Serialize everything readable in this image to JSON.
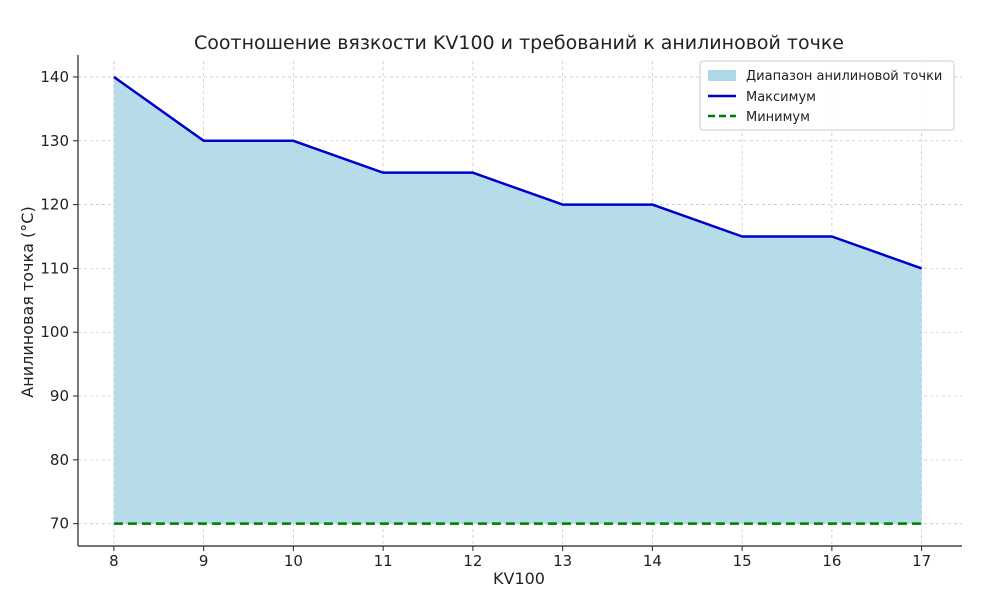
{
  "chart_data": {
    "type": "area",
    "title": "Соотношение вязкости KV100 и требований к анилиновой точке",
    "xlabel": "KV100",
    "ylabel": "Анилиновая точка (°C)",
    "x": [
      8,
      9,
      10,
      11,
      12,
      13,
      14,
      15,
      16,
      17
    ],
    "xlim": [
      7.6,
      17.45
    ],
    "ylim": [
      66.5,
      142.5
    ],
    "x_ticks": [
      8,
      9,
      10,
      11,
      12,
      13,
      14,
      15,
      16,
      17
    ],
    "y_ticks": [
      70,
      80,
      90,
      100,
      110,
      120,
      130,
      140
    ],
    "grid": true,
    "legend_position": "top-right",
    "series": [
      {
        "name": "Максимум",
        "values": [
          140,
          130,
          130,
          125,
          125,
          120,
          120,
          115,
          115,
          110
        ],
        "color": "#0000cc",
        "style": "solid"
      },
      {
        "name": "Минимум",
        "values": [
          70,
          70,
          70,
          70,
          70,
          70,
          70,
          70,
          70,
          70
        ],
        "color": "#007a00",
        "style": "dashed"
      }
    ],
    "fill": {
      "name": "Диапазон анилиновой точки",
      "between": [
        "Минимум",
        "Максимум"
      ],
      "color": "#add8e6"
    }
  }
}
